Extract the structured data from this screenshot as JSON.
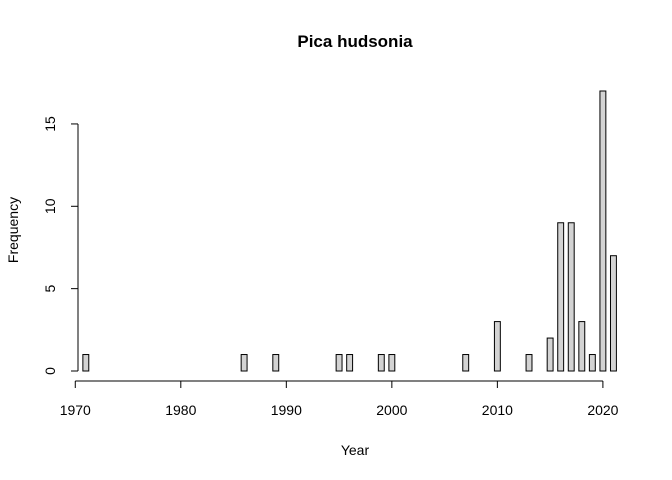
{
  "chart_data": {
    "type": "bar",
    "title": "Pica hudsonia",
    "xlabel": "Year",
    "ylabel": "Frequency",
    "x": [
      1971,
      1972,
      1973,
      1974,
      1975,
      1976,
      1977,
      1978,
      1979,
      1980,
      1981,
      1982,
      1983,
      1984,
      1985,
      1986,
      1987,
      1988,
      1989,
      1990,
      1991,
      1992,
      1993,
      1994,
      1995,
      1996,
      1997,
      1998,
      1999,
      2000,
      2001,
      2002,
      2003,
      2004,
      2005,
      2006,
      2007,
      2008,
      2009,
      2010,
      2011,
      2012,
      2013,
      2014,
      2015,
      2016,
      2017,
      2018,
      2019,
      2020,
      2021
    ],
    "values": [
      1,
      0,
      0,
      0,
      0,
      0,
      0,
      0,
      0,
      0,
      0,
      0,
      0,
      0,
      0,
      1,
      0,
      0,
      1,
      0,
      0,
      0,
      0,
      0,
      1,
      1,
      0,
      0,
      1,
      1,
      0,
      0,
      0,
      0,
      0,
      0,
      1,
      0,
      0,
      3,
      0,
      0,
      1,
      0,
      2,
      9,
      9,
      3,
      1,
      17,
      7
    ],
    "xlim": [
      1969.5,
      2022
    ],
    "ylim": [
      0,
      17
    ],
    "xticks": [
      1970,
      1980,
      1990,
      2000,
      2010,
      2020
    ],
    "yticks": [
      0,
      5,
      10,
      15
    ],
    "bar_fill": "#d3d3d3",
    "grid": false
  }
}
